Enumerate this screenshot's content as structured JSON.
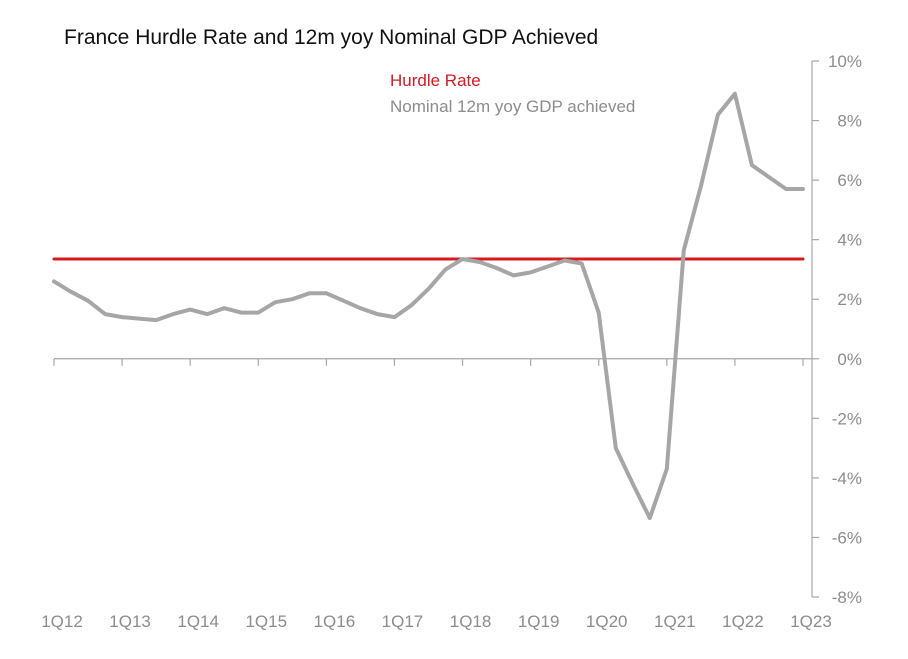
{
  "chart_data": {
    "type": "line",
    "title": "France Hurdle Rate and 12m yoy Nominal GDP Achieved",
    "y_tick_labels": [
      "10%",
      "8%",
      "6%",
      "4%",
      "2%",
      "0%",
      "-2%",
      "-4%",
      "-6%",
      "-8%"
    ],
    "y_ticks": [
      10,
      8,
      6,
      4,
      2,
      0,
      -2,
      -4,
      -6,
      -8
    ],
    "x_tick_labels": [
      "1Q12",
      "1Q13",
      "1Q14",
      "1Q15",
      "1Q16",
      "1Q17",
      "1Q18",
      "1Q19",
      "1Q20",
      "1Q21",
      "1Q22",
      "1Q23"
    ],
    "ylim": [
      -8,
      10
    ],
    "y_axis_position": "right",
    "grid": false,
    "legend_position": "top-center",
    "x_periods": [
      "1Q12",
      "2Q12",
      "3Q12",
      "4Q12",
      "1Q13",
      "2Q13",
      "3Q13",
      "4Q13",
      "1Q14",
      "2Q14",
      "3Q14",
      "4Q14",
      "1Q15",
      "2Q15",
      "3Q15",
      "4Q15",
      "1Q16",
      "2Q16",
      "3Q16",
      "4Q16",
      "1Q17",
      "2Q17",
      "3Q17",
      "4Q17",
      "1Q18",
      "2Q18",
      "3Q18",
      "4Q18",
      "1Q19",
      "2Q19",
      "3Q19",
      "4Q19",
      "1Q20",
      "2Q20",
      "3Q20",
      "4Q20",
      "1Q21",
      "2Q21",
      "3Q21",
      "4Q21",
      "1Q22",
      "2Q22",
      "3Q22",
      "4Q22",
      "1Q23"
    ],
    "series": [
      {
        "name": "Hurdle Rate",
        "color": "#d71920",
        "values": [
          3.35,
          3.35,
          3.35,
          3.35,
          3.35,
          3.35,
          3.35,
          3.35,
          3.35,
          3.35,
          3.35,
          3.35,
          3.35,
          3.35,
          3.35,
          3.35,
          3.35,
          3.35,
          3.35,
          3.35,
          3.35,
          3.35,
          3.35,
          3.35,
          3.35,
          3.35,
          3.35,
          3.35,
          3.35,
          3.35,
          3.35,
          3.35,
          3.35,
          3.35,
          3.35,
          3.35,
          3.35,
          3.35,
          3.35,
          3.35,
          3.35,
          3.35,
          3.35,
          3.35,
          3.35
        ]
      },
      {
        "name": "Nominal 12m yoy GDP achieved",
        "color": "#a6a6a6",
        "values": [
          2.6,
          2.25,
          1.95,
          1.5,
          1.4,
          1.35,
          1.3,
          1.5,
          1.65,
          1.5,
          1.7,
          1.55,
          1.55,
          1.9,
          2.0,
          2.2,
          2.2,
          1.95,
          1.7,
          1.5,
          1.4,
          1.8,
          2.35,
          3.0,
          3.35,
          3.25,
          3.05,
          2.8,
          2.9,
          3.1,
          3.3,
          3.2,
          1.55,
          -3.0,
          -4.2,
          -5.35,
          -3.7,
          3.65,
          5.8,
          8.2,
          8.9,
          6.5,
          6.1,
          5.7,
          5.7
        ]
      }
    ]
  }
}
